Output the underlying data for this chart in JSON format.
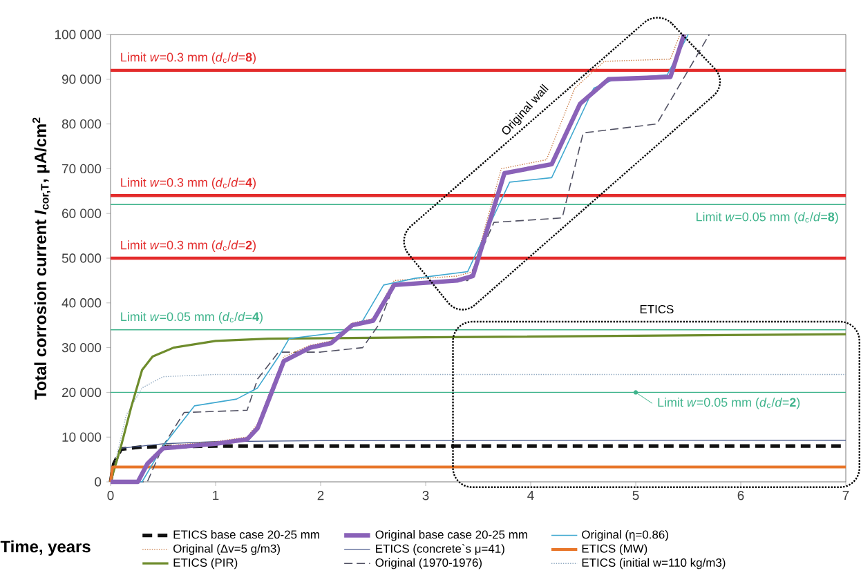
{
  "chart_data": {
    "type": "line",
    "xlabel": "Time, years",
    "ylabel": "Total corrosion current *I*$_{cor,T}$, μA/cm$^{2}$",
    "xlim": [
      0,
      7
    ],
    "xticks": [
      0,
      1,
      2,
      3,
      4,
      5,
      6,
      7
    ],
    "ylim": [
      0,
      100000
    ],
    "yticks": [
      {
        "value": 0,
        "label": "0"
      },
      {
        "value": 10000,
        "label": "10 000"
      },
      {
        "value": 20000,
        "label": "20 000"
      },
      {
        "value": 30000,
        "label": "30 000"
      },
      {
        "value": 40000,
        "label": "40 000"
      },
      {
        "value": 50000,
        "label": "50 000"
      },
      {
        "value": 60000,
        "label": "60 000"
      },
      {
        "value": 70000,
        "label": "70 000"
      },
      {
        "value": 80000,
        "label": "80 000"
      },
      {
        "value": 90000,
        "label": "90 000"
      },
      {
        "value": 100000,
        "label": "100 000"
      }
    ],
    "grid": false,
    "legend": "bottom",
    "marker": "none",
    "annotations": [
      "Limit *w*=0.3 mm (*d*$_{c}$/*d*=**8**)",
      "Limit *w*=0.3 mm (*d*$_{c}$/*d*=**4**)",
      "Limit *w*=0.3 mm (*d*$_{c}$/*d*=**2**)",
      "Limit *w*=0.05 mm (*d*$_{c}$/*d*=**8**)",
      "Limit *w*=0.05 mm (*d*$_{c}$/*d*=**4**)",
      "Limit *w*=0.05 mm (*d*$_{c}$/*d*=**2**)",
      "Original wall",
      "ETICS"
    ],
    "ref_lines": [
      {
        "axis": "y",
        "value": 92000,
        "color": "#e32b2b"
      },
      {
        "axis": "y",
        "value": 64000,
        "color": "#e32b2b"
      },
      {
        "axis": "y",
        "value": 50000,
        "color": "#e32b2b"
      },
      {
        "axis": "y",
        "value": 62000,
        "color": "#3fb48c"
      },
      {
        "axis": "y",
        "value": 34000,
        "color": "#3fb48c"
      },
      {
        "axis": "y",
        "value": 20000,
        "color": "#3fb48c"
      }
    ],
    "series": [
      {
        "name": "ETICS base case 20-25 mm",
        "color": "#111111",
        "line_style": "dashed",
        "x": [
          0,
          0.03,
          0.1,
          0.3,
          1,
          7
        ],
        "values": [
          0,
          4000,
          7300,
          7800,
          8000,
          8000
        ]
      },
      {
        "name": "Original base case 20-25 mm",
        "color": "#8a62b8",
        "line_style": "solid",
        "x": [
          0,
          0.26,
          0.35,
          0.5,
          1.0,
          1.3,
          1.4,
          1.65,
          1.9,
          2.1,
          2.3,
          2.5,
          2.7,
          3.3,
          3.45,
          3.75,
          4.2,
          4.47,
          4.74,
          5.33,
          5.46
        ],
        "values": [
          0,
          0,
          4000,
          7500,
          8500,
          9500,
          12000,
          27000,
          30000,
          31000,
          35000,
          36000,
          44000,
          45000,
          46000,
          69000,
          71000,
          84500,
          90000,
          90500,
          100000
        ]
      },
      {
        "name": "Original (η=0.86)",
        "color": "#3fa8d0",
        "line_style": "solid",
        "x": [
          0,
          0.3,
          0.5,
          0.7,
          0.8,
          1.2,
          1.4,
          1.6,
          1.7,
          2.2,
          2.4,
          2.6,
          2.9,
          3.4,
          3.7,
          3.8,
          4.2,
          4.6,
          4.8,
          5.3,
          5.5
        ],
        "values": [
          0,
          0,
          8000,
          14000,
          17000,
          18500,
          21000,
          28000,
          32000,
          33500,
          36000,
          44000,
          45500,
          47000,
          62000,
          67000,
          68000,
          88000,
          90000,
          91000,
          100000
        ]
      },
      {
        "name": "Original (Δv=5 g/m3)",
        "color": "#c87840",
        "line_style": "dotted",
        "x": [
          0,
          0.26,
          0.35,
          0.5,
          1.0,
          1.3,
          1.4,
          1.65,
          1.9,
          2.1,
          2.3,
          2.5,
          2.7,
          3.3,
          3.45,
          3.72,
          4.15,
          4.42,
          4.7,
          5.33,
          5.42
        ],
        "values": [
          0,
          0,
          4500,
          8000,
          9000,
          10000,
          13000,
          28000,
          30500,
          31500,
          35500,
          36500,
          45000,
          46000,
          47000,
          70000,
          72000,
          88000,
          94000,
          94500,
          100000
        ]
      },
      {
        "name": "ETICS (concrete`s μ=41)",
        "color": "#4a5a8c",
        "line_style": "solid",
        "x": [
          0,
          0.1,
          0.5,
          1,
          2,
          7
        ],
        "values": [
          0,
          7500,
          8500,
          9000,
          9200,
          9300
        ]
      },
      {
        "name": "ETICS (MW)",
        "color": "#e8762a",
        "line_style": "solid",
        "x": [
          0,
          0.02,
          7
        ],
        "values": [
          0,
          3300,
          3300
        ]
      },
      {
        "name": "ETICS (PIR)",
        "color": "#6e8c2c",
        "line_style": "solid",
        "x": [
          0,
          0.1,
          0.2,
          0.3,
          0.4,
          0.6,
          1,
          1.5,
          3,
          7
        ],
        "values": [
          0,
          8000,
          17000,
          25000,
          28000,
          30000,
          31500,
          32000,
          32300,
          33000
        ]
      },
      {
        "name": "Original (1970-1976)",
        "color": "#505062",
        "line_style": "dashed",
        "x": [
          0,
          0.35,
          0.5,
          0.7,
          1.3,
          1.4,
          1.6,
          2.0,
          2.4,
          2.55,
          2.7,
          3.4,
          3.5,
          3.65,
          4.3,
          4.5,
          5.2,
          5.7
        ],
        "values": [
          0,
          0,
          8000,
          15500,
          16000,
          23000,
          29000,
          29000,
          30000,
          35000,
          44000,
          45000,
          50000,
          58000,
          59000,
          78000,
          80000,
          100000
        ]
      },
      {
        "name": "ETICS (initial w=110 kg/m3)",
        "color": "#8fa8c0",
        "line_style": "dotted",
        "x": [
          0,
          0.15,
          0.3,
          0.5,
          1,
          7
        ],
        "values": [
          0,
          15000,
          21000,
          23500,
          24000,
          24000
        ]
      }
    ]
  }
}
